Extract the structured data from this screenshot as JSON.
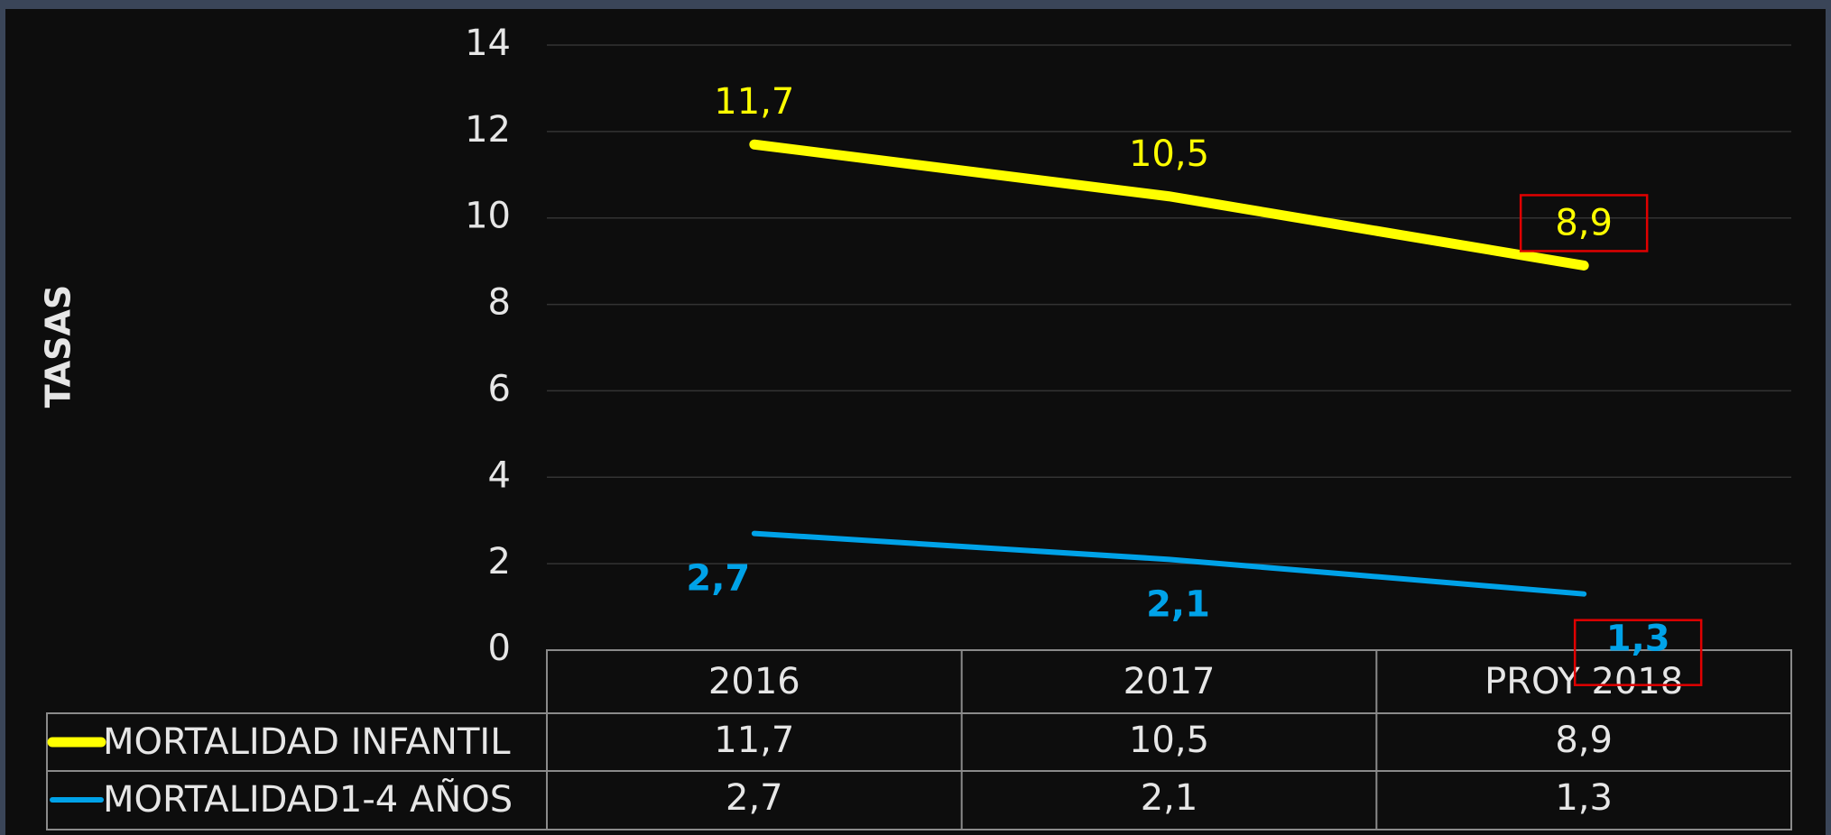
{
  "chart_data": {
    "type": "line",
    "y_label": "TASAS",
    "categories": [
      "2016",
      "2017",
      "PROY 2018"
    ],
    "series": [
      {
        "name": "MORTALIDAD INFANTIL",
        "color": "#ffff00",
        "values": [
          11.7,
          10.5,
          8.9
        ],
        "value_labels": [
          "11,7",
          "10,5",
          "8,9"
        ]
      },
      {
        "name": "MORTALIDAD1-4 AÑOS",
        "color": "#00a2e8",
        "values": [
          2.7,
          2.1,
          1.3
        ],
        "value_labels": [
          "2,7",
          "2,1",
          "1,3"
        ]
      }
    ],
    "ylim": [
      0,
      14
    ],
    "yticks": [
      0,
      2,
      4,
      6,
      8,
      10,
      12,
      14
    ],
    "grid": true
  }
}
